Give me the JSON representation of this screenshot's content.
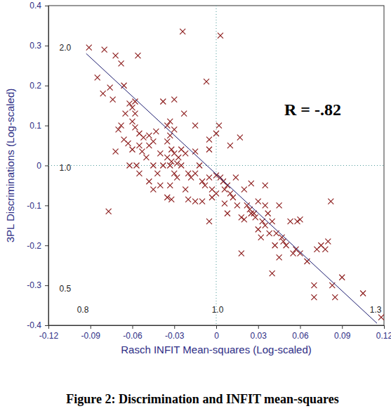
{
  "chart_data": {
    "type": "scatter",
    "title": "Figure 2: Discrimination and INFIT mean-squares",
    "x_label": "Rasch INFIT Mean-squares (Log-scaled)",
    "y_label": "3PL Discriminations (Log-scaled)",
    "xlim": [
      -0.12,
      0.12
    ],
    "ylim": [
      -0.4,
      0.4
    ],
    "xticks": [
      -0.12,
      -0.09,
      -0.06,
      -0.03,
      0,
      0.03,
      0.06,
      0.09,
      0.12
    ],
    "yticks": [
      -0.4,
      -0.3,
      -0.2,
      -0.1,
      0,
      0.1,
      0.2,
      0.3,
      0.4
    ],
    "grid": false,
    "series": [
      {
        "type": "scatter",
        "marker": "x",
        "color": "#8b1a1a",
        "x": [
          -0.091,
          -0.08,
          -0.072,
          -0.068,
          -0.056,
          -0.085,
          -0.081,
          -0.076,
          -0.066,
          -0.074,
          -0.062,
          -0.06,
          -0.058,
          -0.065,
          -0.058,
          -0.068,
          -0.07,
          -0.066,
          -0.072,
          -0.063,
          -0.06,
          -0.058,
          -0.055,
          -0.052,
          -0.055,
          -0.06,
          -0.053,
          -0.048,
          -0.045,
          -0.048,
          -0.05,
          -0.055,
          -0.062,
          -0.057,
          -0.045,
          -0.043,
          -0.04,
          -0.042,
          -0.038,
          -0.045,
          -0.04,
          -0.048,
          -0.077,
          -0.038,
          -0.033,
          -0.035,
          -0.03,
          -0.033,
          -0.035,
          -0.032,
          -0.03,
          -0.035,
          -0.027,
          -0.032,
          -0.033,
          -0.028,
          -0.025,
          -0.03,
          -0.028,
          -0.033,
          -0.035,
          -0.032,
          -0.03,
          -0.025,
          -0.022,
          -0.02,
          -0.018,
          -0.022,
          -0.02,
          -0.015,
          -0.024,
          -0.023,
          -0.015,
          -0.015,
          -0.015,
          -0.012,
          -0.01,
          -0.008,
          -0.007,
          -0.005,
          -0.005,
          -0.005,
          -0.003,
          -0.005,
          -0.003,
          0.0,
          0.0,
          0.0,
          0.003,
          0.002,
          0.003,
          0.005,
          0.006,
          0.008,
          0.006,
          0.008,
          0.01,
          0.012,
          0.01,
          0.014,
          0.015,
          0.017,
          0.018,
          0.018,
          0.02,
          0.022,
          0.024,
          0.025,
          0.025,
          0.027,
          0.028,
          0.03,
          0.03,
          0.032,
          0.033,
          0.035,
          0.035,
          0.037,
          0.038,
          0.04,
          0.04,
          0.042,
          0.043,
          0.045,
          0.047,
          0.048,
          0.05,
          0.045,
          0.053,
          0.055,
          0.057,
          0.058,
          0.06,
          0.06,
          0.065,
          0.07,
          0.07,
          0.072,
          0.075,
          0.078,
          0.08,
          0.082,
          0.083,
          0.085,
          0.09,
          0.105,
          0.118,
          -0.01,
          0.02,
          0.035
        ],
        "values": [
          0.295,
          0.29,
          0.275,
          0.255,
          0.275,
          0.22,
          0.18,
          0.195,
          0.2,
          0.165,
          0.155,
          0.145,
          0.13,
          0.13,
          0.16,
          0.1,
          0.09,
          0.065,
          0.035,
          0.055,
          0.11,
          0.095,
          0.08,
          0.07,
          0.05,
          0.04,
          0.035,
          0.05,
          0.06,
          0.075,
          0.02,
          -0.02,
          0.0,
          0.0,
          0.0,
          0.085,
          0.03,
          -0.02,
          0.0,
          -0.06,
          -0.05,
          -0.04,
          -0.115,
          0.16,
          0.11,
          0.1,
          0.09,
          0.075,
          0.06,
          0.04,
          0.03,
          0.02,
          0.02,
          0.01,
          0.0,
          0.005,
          0.0,
          -0.02,
          -0.03,
          -0.05,
          -0.08,
          -0.085,
          0.165,
          0.04,
          0.03,
          -0.02,
          -0.03,
          -0.06,
          -0.085,
          -0.09,
          0.335,
          0.13,
          0.1,
          0.035,
          -0.02,
          0.0,
          -0.04,
          -0.05,
          0.21,
          0.065,
          0.04,
          -0.03,
          -0.06,
          -0.14,
          -0.08,
          -0.07,
          -0.025,
          0.08,
          0.325,
          0.1,
          -0.03,
          -0.04,
          -0.06,
          -0.05,
          -0.095,
          -0.12,
          -0.07,
          -0.08,
          0.05,
          -0.03,
          -0.1,
          0.07,
          -0.13,
          -0.22,
          -0.06,
          -0.1,
          -0.11,
          -0.12,
          -0.045,
          -0.12,
          -0.13,
          -0.09,
          -0.16,
          -0.18,
          -0.14,
          -0.1,
          -0.15,
          -0.12,
          -0.17,
          -0.14,
          -0.27,
          -0.2,
          -0.17,
          -0.23,
          -0.18,
          -0.19,
          -0.2,
          -0.1,
          -0.14,
          -0.22,
          -0.21,
          -0.14,
          -0.135,
          -0.22,
          -0.24,
          -0.3,
          -0.33,
          -0.21,
          -0.2,
          -0.21,
          -0.19,
          -0.09,
          -0.3,
          -0.33,
          -0.28,
          -0.32,
          -0.38,
          -0.09,
          -0.135,
          -0.05
        ]
      },
      {
        "type": "line",
        "line_style": "solid",
        "color": "#1a1a6e",
        "x": [
          -0.093,
          0.115
        ],
        "values": [
          0.28,
          -0.395
        ]
      }
    ],
    "reference_lines": [
      {
        "axis": "x",
        "value": 0
      },
      {
        "axis": "y",
        "value": 0
      }
    ],
    "annotations": [
      {
        "text": "R = -.82",
        "x": 0.069,
        "y": 0.135
      },
      {
        "text": "2.0",
        "x": -0.108,
        "y": 0.293
      },
      {
        "text": "1.0",
        "x": -0.108,
        "y": -0.008
      },
      {
        "text": "0.5",
        "x": -0.108,
        "y": -0.31
      },
      {
        "text": "0.8",
        "x": -0.0954,
        "y": -0.363
      },
      {
        "text": "1.0",
        "x": 0.001,
        "y": -0.363
      },
      {
        "text": "1.3",
        "x": 0.114,
        "y": -0.363
      }
    ]
  }
}
